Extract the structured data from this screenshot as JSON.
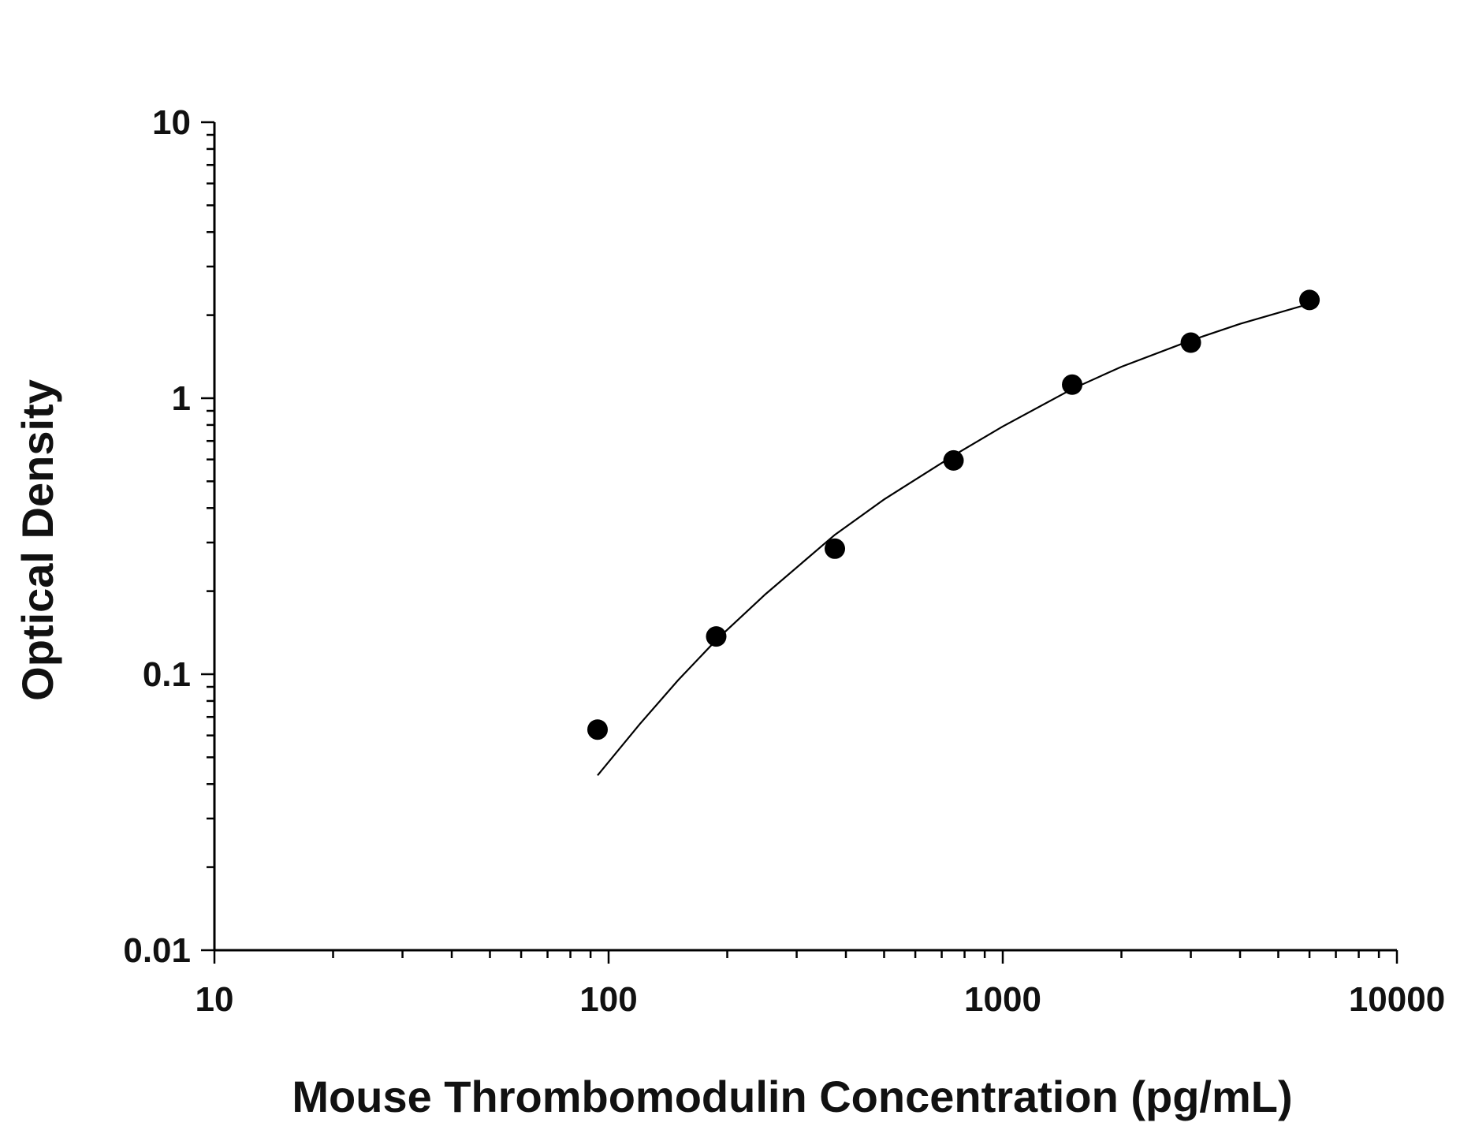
{
  "chart_data": {
    "type": "scatter",
    "xlabel": "Mouse Thrombomodulin Concentration (pg/mL)",
    "ylabel": "Optical Density",
    "x_scale": "log",
    "y_scale": "log",
    "xlim": [
      10,
      10000
    ],
    "ylim": [
      0.01,
      10
    ],
    "x_ticks": [
      "10",
      "100",
      "1000",
      "10000"
    ],
    "y_ticks": [
      "0.01",
      "0.1",
      "1",
      "10"
    ],
    "grid": false,
    "legend": "none",
    "colors": {
      "points": "#000000",
      "curve": "#000000",
      "axis": "#000000"
    },
    "series": [
      {
        "type": "scatter",
        "x": [
          93.75,
          187.5,
          375,
          750,
          1500,
          3000,
          6000
        ],
        "y": [
          0.063,
          0.137,
          0.285,
          0.595,
          1.12,
          1.59,
          2.27
        ]
      },
      {
        "type": "line",
        "x": [
          93.75,
          120,
          150,
          187.5,
          250,
          375,
          500,
          750,
          1000,
          1500,
          2000,
          3000,
          4000,
          6000
        ],
        "y": [
          0.043,
          0.066,
          0.095,
          0.133,
          0.195,
          0.32,
          0.43,
          0.62,
          0.79,
          1.08,
          1.3,
          1.62,
          1.86,
          2.2
        ]
      }
    ]
  }
}
